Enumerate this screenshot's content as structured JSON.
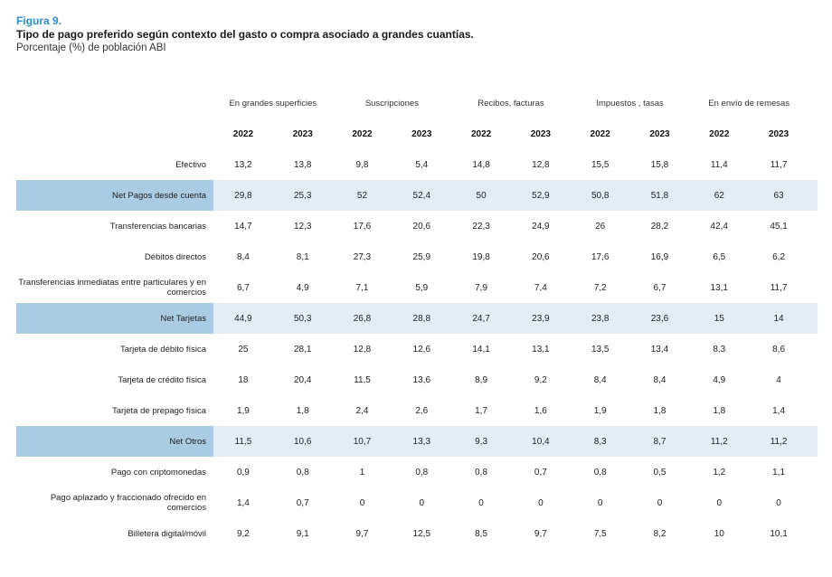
{
  "figure": {
    "label": "Figura 9.",
    "title": "Tipo de pago preferido según contexto del gasto o compra asociado a grandes cuantías.",
    "subtitle": "Porcentaje (%) de población ABI"
  },
  "groups": [
    "En grandes superficies",
    "Suscripciones",
    "Recibos, facturas",
    "Impuestos , tasas",
    "En envío de remesas"
  ],
  "years": [
    "2022",
    "2023",
    "2022",
    "2023",
    "2022",
    "2023",
    "2022",
    "2023",
    "2022",
    "2023"
  ],
  "rows": [
    {
      "label": "Efectivo",
      "values": [
        "13,2",
        "13,8",
        "9,8",
        "5,4",
        "14,8",
        "12,8",
        "15,5",
        "15,8",
        "11,4",
        "11,7"
      ],
      "style": "white"
    },
    {
      "label": "Net Pagos desde cuenta",
      "values": [
        "29,8",
        "25,3",
        "52",
        "52,4",
        "50",
        "52,9",
        "50,8",
        "51,8",
        "62",
        "63"
      ],
      "style": "highlight"
    },
    {
      "label": "Transferencias bancarias",
      "values": [
        "14,7",
        "12,3",
        "17,6",
        "20,6",
        "22,3",
        "24,9",
        "26",
        "28,2",
        "42,4",
        "45,1"
      ],
      "style": "white"
    },
    {
      "label": "Débitos directos",
      "values": [
        "8,4",
        "8,1",
        "27,3",
        "25,9",
        "19,8",
        "20,6",
        "17,6",
        "16,9",
        "6,5",
        "6,2"
      ],
      "style": "white"
    },
    {
      "label": "Transferencias inmediatas entre particulares y en comercios",
      "values": [
        "6,7",
        "4,9",
        "7,1",
        "5,9",
        "7,9",
        "7,4",
        "7,2",
        "6,7",
        "13,1",
        "11,7"
      ],
      "style": "white"
    },
    {
      "label": "Net Tarjetas",
      "values": [
        "44,9",
        "50,3",
        "26,8",
        "28,8",
        "24,7",
        "23,9",
        "23,8",
        "23,6",
        "15",
        "14"
      ],
      "style": "highlight"
    },
    {
      "label": "Tarjeta de débito física",
      "values": [
        "25",
        "28,1",
        "12,8",
        "12,6",
        "14,1",
        "13,1",
        "13,5",
        "13,4",
        "8,3",
        "8,6"
      ],
      "style": "white"
    },
    {
      "label": "Tarjeta de crédito física",
      "values": [
        "18",
        "20,4",
        "11,5",
        "13,6",
        "8,9",
        "9,2",
        "8,4",
        "8,4",
        "4,9",
        "4"
      ],
      "style": "white"
    },
    {
      "label": "Tarjeta de prepago física",
      "values": [
        "1,9",
        "1,8",
        "2,4",
        "2,6",
        "1,7",
        "1,6",
        "1,9",
        "1,8",
        "1,8",
        "1,4"
      ],
      "style": "white"
    },
    {
      "label": "Net Otros",
      "values": [
        "11,5",
        "10,6",
        "10,7",
        "13,3",
        "9,3",
        "10,4",
        "8,3",
        "8,7",
        "11,2",
        "11,2"
      ],
      "style": "highlight"
    },
    {
      "label": "Pago con criptomonedas",
      "values": [
        "0,9",
        "0,8",
        "1",
        "0,8",
        "0,8",
        "0,7",
        "0,8",
        "0,5",
        "1,2",
        "1,1"
      ],
      "style": "white"
    },
    {
      "label": "Pago aplazado y fraccionado ofrecido en comercios",
      "values": [
        "1,4",
        "0,7",
        "0",
        "0",
        "0",
        "0",
        "0",
        "0",
        "0",
        "0"
      ],
      "style": "white"
    },
    {
      "label": "Billetera digital/móvil",
      "values": [
        "9,2",
        "9,1",
        "9,7",
        "12,5",
        "8,5",
        "9,7",
        "7,5",
        "8,2",
        "10",
        "10,1"
      ],
      "style": "white"
    }
  ]
}
